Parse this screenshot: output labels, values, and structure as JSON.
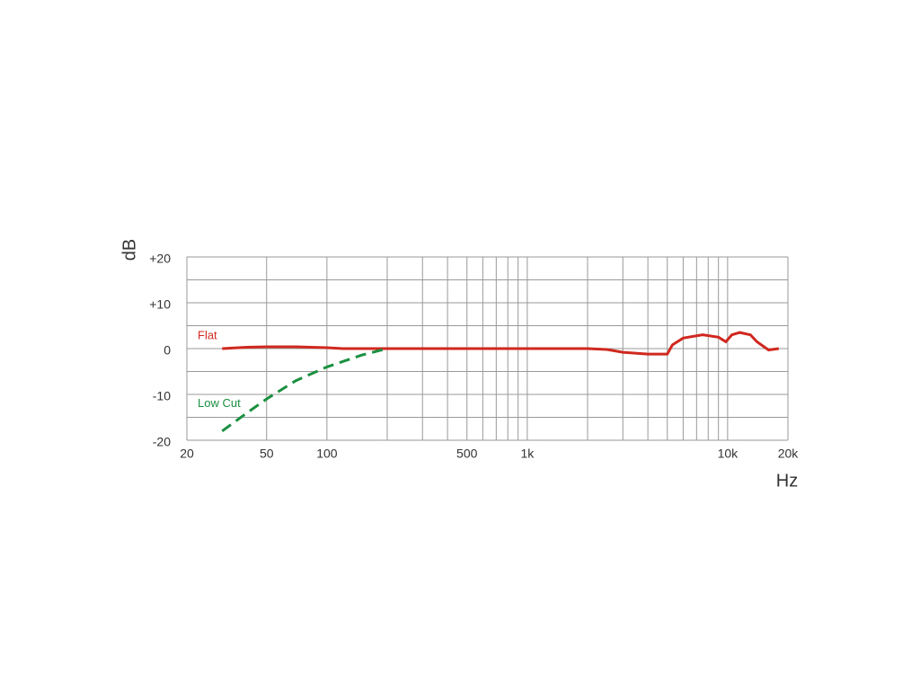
{
  "chart_data": {
    "type": "line",
    "y_label": "dB",
    "x_label": "Hz",
    "xscale": "log",
    "xlim": [
      20,
      20000
    ],
    "ylim": [
      -20,
      20
    ],
    "xticks": [
      20,
      50,
      100,
      500,
      {
        "value": 1000,
        "label": "1k"
      },
      {
        "value": 10000,
        "label": "10k"
      },
      {
        "value": 20000,
        "label": "20k"
      }
    ],
    "yticks": [
      {
        "value": 20,
        "label": "+20"
      },
      {
        "value": 10,
        "label": "+10"
      },
      0,
      -10,
      -20
    ],
    "xgrid": [
      20,
      50,
      100,
      200,
      300,
      400,
      500,
      600,
      700,
      800,
      900,
      1000,
      2000,
      3000,
      4000,
      5000,
      6000,
      7000,
      8000,
      9000,
      10000,
      20000
    ],
    "ygrid": [
      -20,
      -15,
      -10,
      -5,
      0,
      5,
      10,
      15,
      20
    ],
    "grid": true,
    "series": [
      {
        "name": "Flat",
        "color": "#d0281e",
        "dashed": false,
        "x": [
          30,
          40,
          50,
          70,
          100,
          120,
          200,
          1000,
          2000,
          2500,
          3000,
          4000,
          5000,
          5300,
          6000,
          7500,
          9000,
          9800,
          10500,
          11500,
          13000,
          14000,
          16000,
          18000
        ],
        "values": [
          0,
          0.3,
          0.4,
          0.4,
          0.2,
          0,
          0,
          0,
          0,
          -0.2,
          -0.8,
          -1.2,
          -1.2,
          0.8,
          2.3,
          3,
          2.5,
          1.5,
          3,
          3.5,
          3,
          1.5,
          -0.3,
          0
        ]
      },
      {
        "name": "Low Cut",
        "color": "#1a9040",
        "dashed": true,
        "x": [
          30,
          40,
          50,
          70,
          100,
          150,
          200
        ],
        "values": [
          -18,
          -14,
          -11,
          -7,
          -4,
          -1.4,
          0
        ]
      }
    ]
  }
}
